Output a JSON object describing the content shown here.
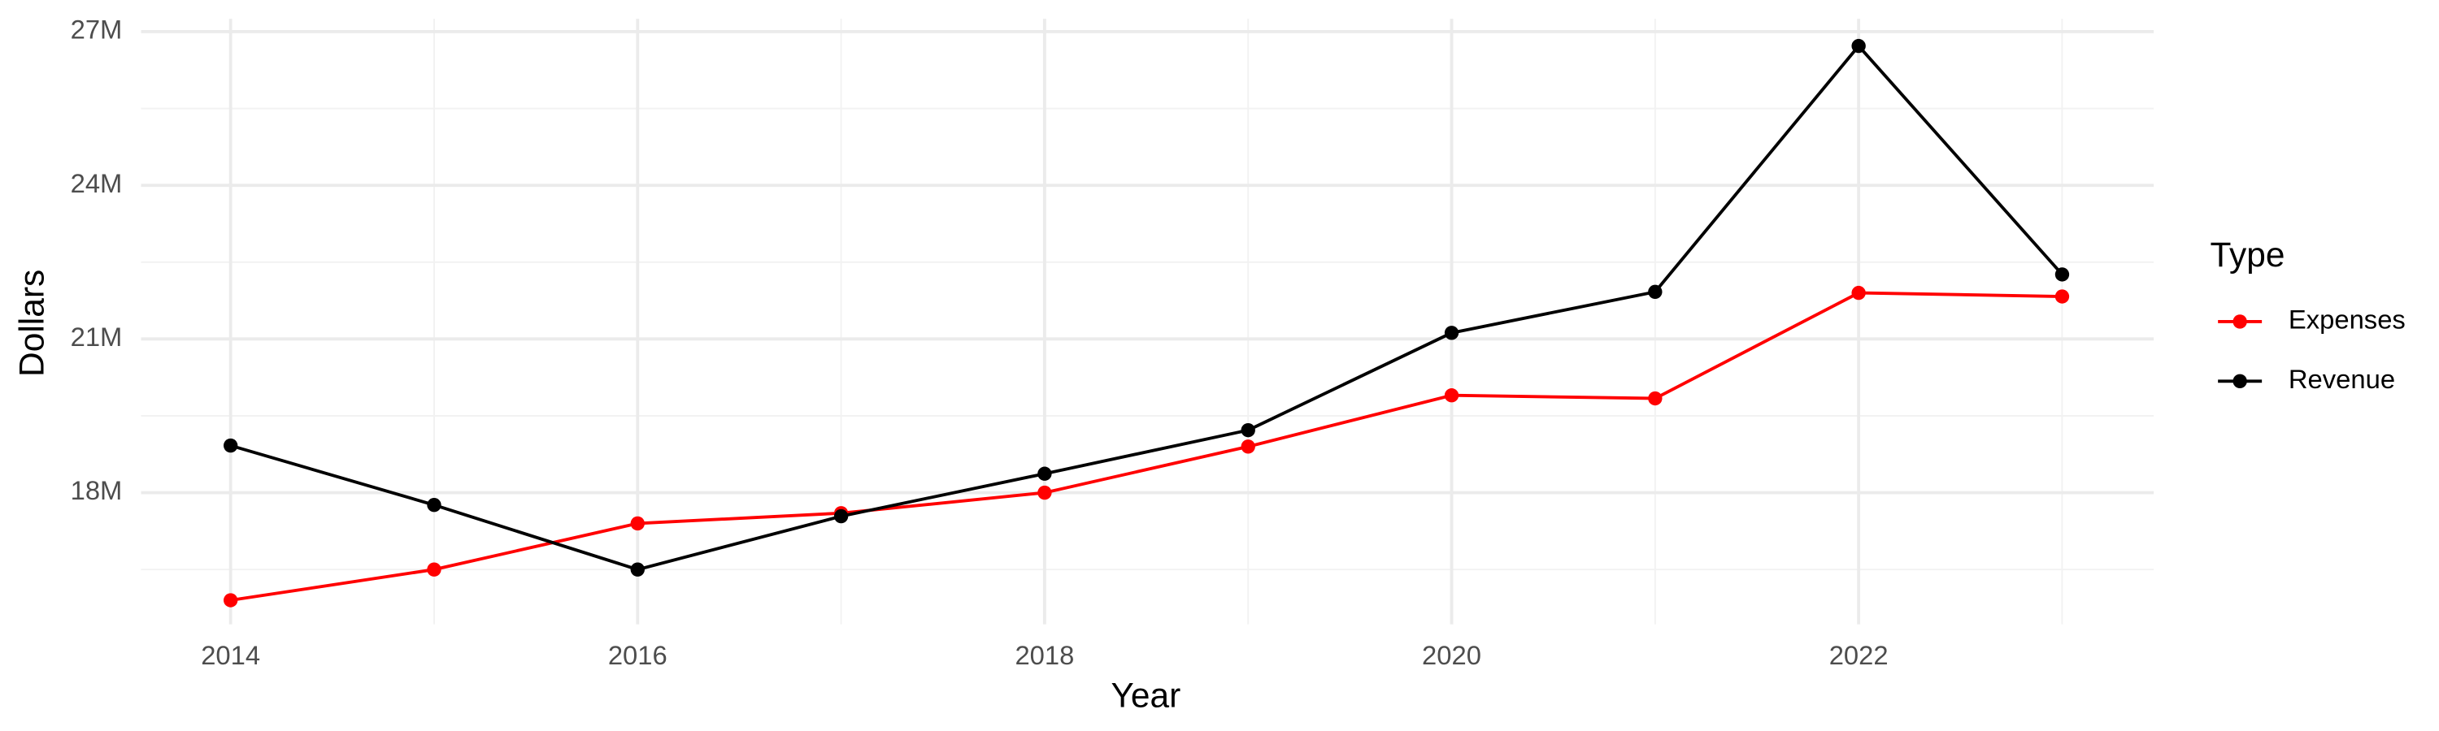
{
  "chart_data": {
    "type": "line",
    "x_label": "Year",
    "y_label": "Dollars",
    "legend_title": "Type",
    "legend": "right",
    "grid": true,
    "x": [
      2014,
      2015,
      2016,
      2017,
      2018,
      2019,
      2020,
      2021,
      2022,
      2023
    ],
    "series": [
      {
        "name": "Expenses",
        "color": "#ff0000",
        "values": [
          15900000,
          16500000,
          17400000,
          17600000,
          18000000,
          18900000,
          19900000,
          19840000,
          21900000,
          21830000
        ]
      },
      {
        "name": "Revenue",
        "color": "#000000",
        "values": [
          18920000,
          17760000,
          16500000,
          17540000,
          18370000,
          19220000,
          21120000,
          21920000,
          26720000,
          22260000
        ]
      }
    ],
    "xlim": [
      2013.56,
      2023.45
    ],
    "xticks": [
      2014,
      2016,
      2018,
      2020,
      2022
    ],
    "ylim": [
      15430000,
      27250000
    ],
    "yticks": [
      {
        "value": 18000000,
        "label": "18M"
      },
      {
        "value": 21000000,
        "label": "21M"
      },
      {
        "value": 24000000,
        "label": "24M"
      },
      {
        "value": 27000000,
        "label": "27M"
      }
    ]
  }
}
